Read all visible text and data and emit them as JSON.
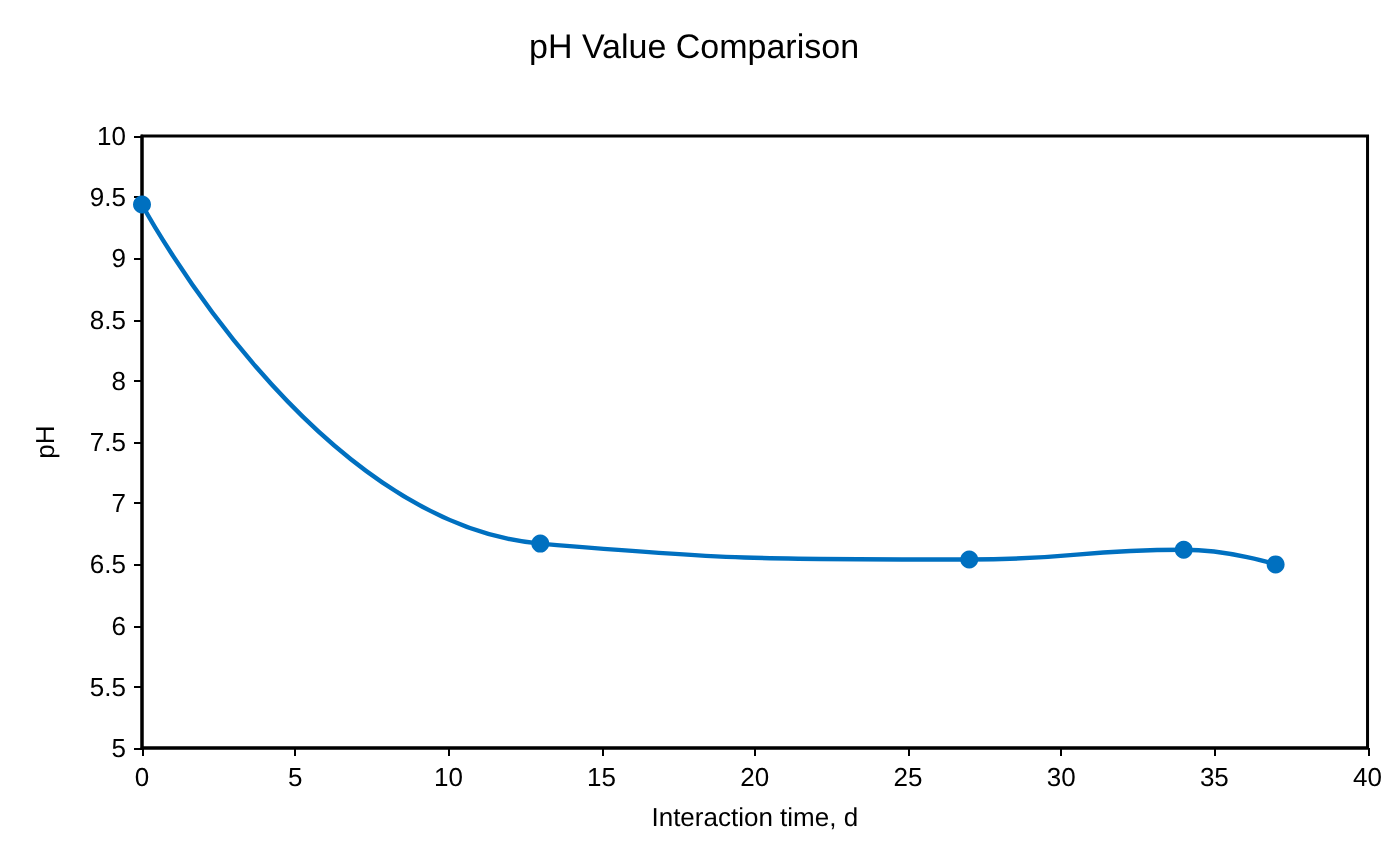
{
  "chart_data": {
    "type": "line",
    "title": "pH Value Comparison",
    "xlabel": "Interaction time, d",
    "ylabel": "pH",
    "x": [
      0,
      13,
      27,
      34,
      37
    ],
    "series": [
      {
        "color": "#0070c0",
        "values": [
          9.44,
          6.67,
          6.54,
          6.62,
          6.5
        ]
      }
    ],
    "xlim": [
      0,
      40
    ],
    "xticks": [
      0,
      5,
      10,
      15,
      20,
      25,
      30,
      35,
      40
    ],
    "ylim": [
      5,
      10
    ],
    "yticks": [
      5,
      5.5,
      6,
      6.5,
      7,
      7.5,
      8,
      8.5,
      9,
      9.5,
      10
    ],
    "marker": "circle",
    "line_style": "solid"
  }
}
